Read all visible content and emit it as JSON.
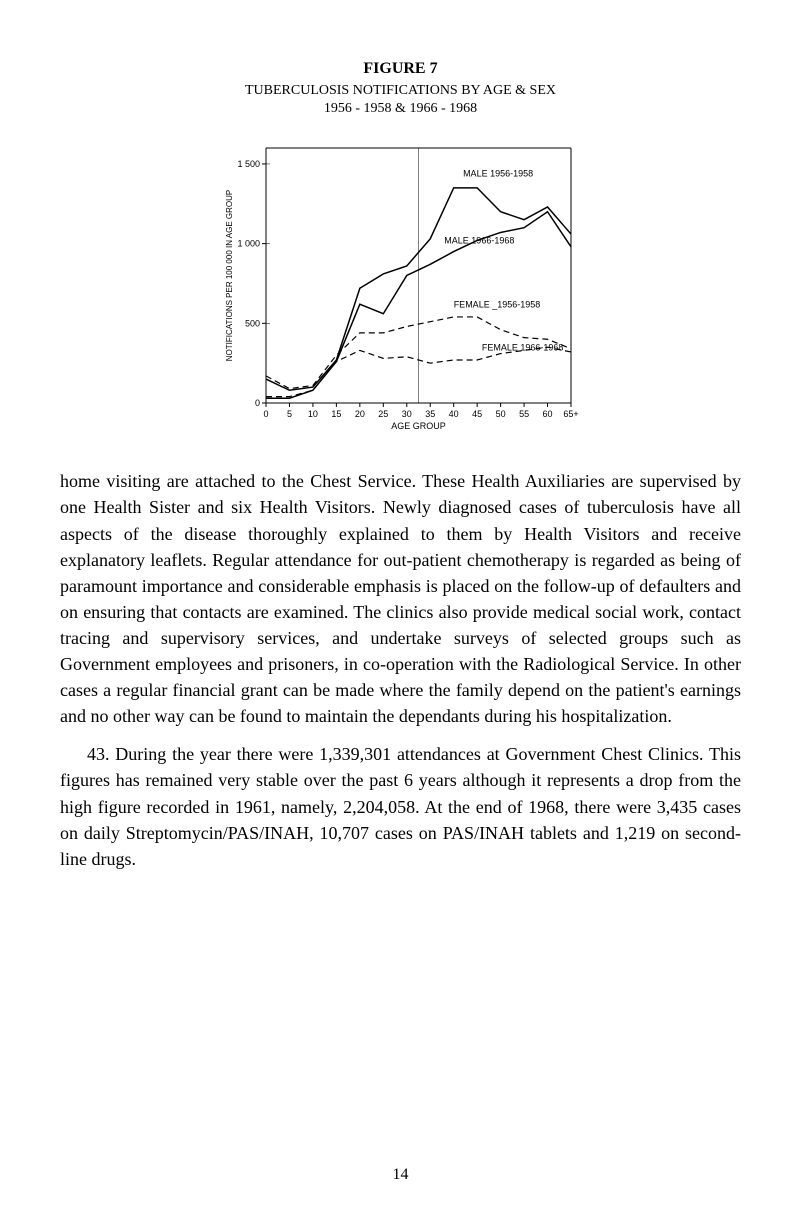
{
  "figure": {
    "caption_title": "FIGURE 7",
    "caption_line1": "TUBERCULOSIS NOTIFICATIONS BY AGE & SEX",
    "caption_line2": "1956 - 1958 & 1966 - 1968",
    "chart": {
      "type": "line",
      "x_label": "AGE GROUP",
      "y_label": "NOTIFICATIONS PER 100 000 IN AGE GROUP",
      "x_ticks": [
        "0",
        "5",
        "10",
        "15",
        "20",
        "25",
        "30",
        "35",
        "40",
        "45",
        "50",
        "55",
        "60",
        "65+"
      ],
      "y_ticks": [
        0,
        500,
        1000,
        1500
      ],
      "xlim": [
        0,
        65
      ],
      "ylim": [
        0,
        1600
      ],
      "background_color": "#ffffff",
      "axis_color": "#000000",
      "tick_fontsize": 8,
      "series": [
        {
          "name": "MALE 1956-1958",
          "label": "MALE 1956-1958",
          "color": "#000000",
          "dash": "none",
          "width": 1.5,
          "points": [
            [
              0,
              150
            ],
            [
              5,
              80
            ],
            [
              10,
              100
            ],
            [
              15,
              270
            ],
            [
              20,
              720
            ],
            [
              25,
              810
            ],
            [
              30,
              860
            ],
            [
              35,
              1030
            ],
            [
              40,
              1350
            ],
            [
              45,
              1350
            ],
            [
              50,
              1200
            ],
            [
              55,
              1150
            ],
            [
              60,
              1230
            ],
            [
              65,
              1060
            ]
          ]
        },
        {
          "name": "MALE 1966-1968",
          "label": "MALE 1966-1968",
          "color": "#000000",
          "dash": "none",
          "width": 1.5,
          "points": [
            [
              0,
              30
            ],
            [
              5,
              30
            ],
            [
              10,
              80
            ],
            [
              15,
              260
            ],
            [
              20,
              620
            ],
            [
              25,
              560
            ],
            [
              30,
              800
            ],
            [
              35,
              870
            ],
            [
              40,
              950
            ],
            [
              45,
              1020
            ],
            [
              50,
              1070
            ],
            [
              55,
              1100
            ],
            [
              60,
              1200
            ],
            [
              65,
              980
            ]
          ]
        },
        {
          "name": "FEMALE 1956-1958",
          "label": "FEMALE _1956-1958",
          "color": "#000000",
          "dash": "6,4",
          "width": 1.2,
          "points": [
            [
              0,
              170
            ],
            [
              5,
              90
            ],
            [
              10,
              110
            ],
            [
              15,
              300
            ],
            [
              20,
              440
            ],
            [
              25,
              440
            ],
            [
              30,
              480
            ],
            [
              35,
              510
            ],
            [
              40,
              540
            ],
            [
              45,
              540
            ],
            [
              50,
              460
            ],
            [
              55,
              410
            ],
            [
              60,
              400
            ],
            [
              65,
              340
            ]
          ]
        },
        {
          "name": "FEMALE 1966-1968",
          "label": "FEMALE 1966-1968",
          "color": "#000000",
          "dash": "6,4",
          "width": 1.2,
          "points": [
            [
              0,
              40
            ],
            [
              5,
              40
            ],
            [
              10,
              80
            ],
            [
              15,
              260
            ],
            [
              20,
              330
            ],
            [
              25,
              280
            ],
            [
              30,
              290
            ],
            [
              35,
              250
            ],
            [
              40,
              270
            ],
            [
              45,
              270
            ],
            [
              50,
              310
            ],
            [
              55,
              330
            ],
            [
              60,
              350
            ],
            [
              65,
              320
            ]
          ]
        }
      ],
      "series_label_positions": {
        "male5658": {
          "x": 42,
          "y": 1420
        },
        "male6668": {
          "x": 38,
          "y": 1000
        },
        "female5658": {
          "x": 40,
          "y": 600
        },
        "female6668": {
          "x": 46,
          "y": 330
        }
      }
    }
  },
  "paragraphs": {
    "p1": "home visiting are attached to the Chest Service. These Health Auxiliaries are supervised by one Health Sister and six Health Visitors. Newly diagnosed cases of tuberculosis have all aspects of the disease thoroughly explained to them by Health Visitors and receive explanatory leaflets. Regular attendance for out-patient chemotherapy is regarded as being of paramount importance and considerable emphasis is placed on the follow-up of defaulters and on ensuring that contacts are examined. The clinics also provide medical social work, contact tracing and supervisory services, and undertake surveys of selected groups such as Government employees and prisoners, in co-operation with the Radio­logical Service. In other cases a regular financial grant can be made where the family depend on the patient's earnings and no other way can be found to maintain the dependants during his hospitalization.",
    "p2": "43.  During the year there were 1,339,301 attendances at Government Chest Clinics. This figures has remained very stable over the past 6 years although it represents a drop from the high figure recorded in 1961, namely, 2,204,058. At the end of 1968, there were 3,435 cases on daily Streptomycin/PAS/INAH, 10,707 cases on PAS/INAH tablets and 1,219 on second-line drugs."
  },
  "page_number": "14"
}
